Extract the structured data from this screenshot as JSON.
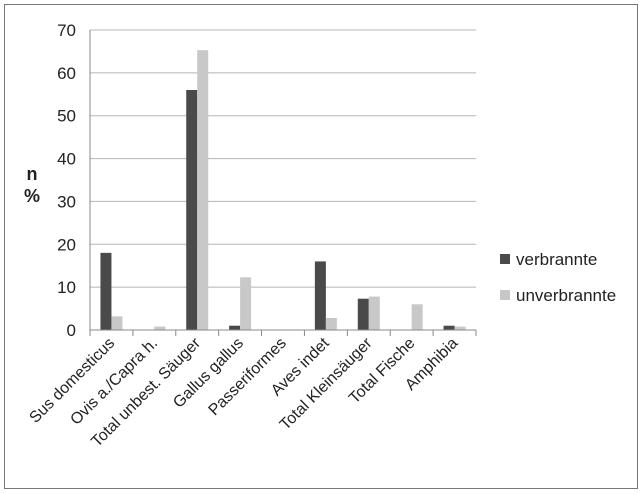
{
  "chart_data": {
    "type": "bar",
    "title": "",
    "xlabel": "",
    "ylabel": [
      "n",
      "%"
    ],
    "ylim": [
      0,
      70
    ],
    "yticks": [
      0,
      10,
      20,
      30,
      40,
      50,
      60,
      70
    ],
    "grid": true,
    "legend_position": "right",
    "categories": [
      "Sus domesticus",
      "Ovis a./Capra h.",
      "Total unbest. Säuger",
      "Gallus gallus",
      "Passeriformes",
      "Aves indet",
      "Total Kleinsäuger",
      "Total Fische",
      "Amphibia"
    ],
    "series": [
      {
        "name": "verbrannte",
        "color": "#4a4a4a",
        "values": [
          18,
          0,
          56,
          1,
          0,
          16,
          7.3,
          0,
          1
        ]
      },
      {
        "name": "unverbrannte",
        "color": "#c8c8c8",
        "values": [
          3.2,
          0.8,
          65.3,
          12.3,
          0,
          2.8,
          7.8,
          6,
          0.8
        ]
      }
    ]
  }
}
